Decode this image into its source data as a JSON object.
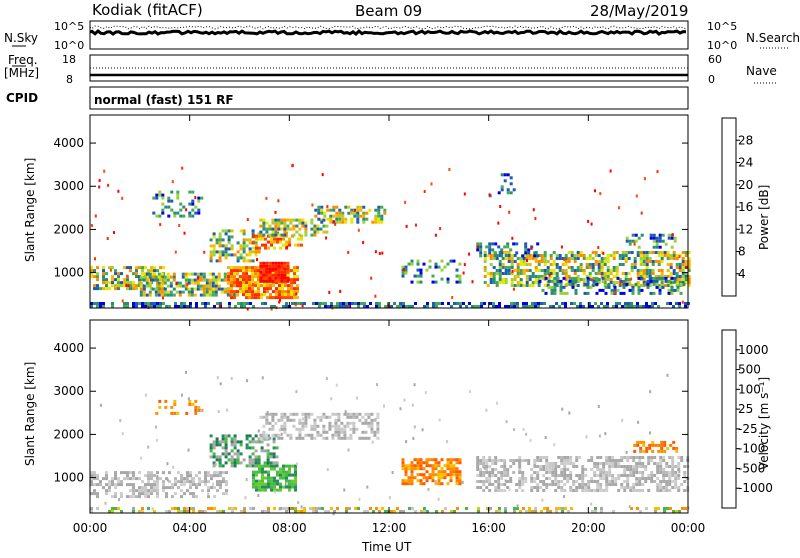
{
  "header": {
    "title": "Kodiak (fitACF)",
    "beam": "Beam 09",
    "date": "28/May/2019"
  },
  "status_panel": {
    "nsky_label": "N.Sky",
    "nsearch_label": "N.Search",
    "freq_label": "Freq.",
    "freq_unit": "[MHz]",
    "nave_label": "Nave",
    "cpid_label": "CPID",
    "cpid_text": "normal (fast) 151 RF",
    "noise_ticks": [
      "10^5",
      "10^0"
    ],
    "freq_ticks": [
      "18",
      "8"
    ],
    "nave_ticks": [
      "60",
      "0"
    ]
  },
  "chart_data": [
    {
      "type": "heatmap",
      "name": "power",
      "ylabel": "Slant Range [km]",
      "ylim": [
        180,
        4650
      ],
      "yticks": [
        "1000",
        "2000",
        "3000",
        "4000"
      ],
      "xticks": [
        "00:00",
        "04:00",
        "08:00",
        "12:00",
        "16:00",
        "20:00",
        "00:00"
      ],
      "xlim_hours": [
        0,
        24
      ],
      "colorbar": {
        "label": "Power [dB]",
        "ticks": [
          "28",
          "24",
          "20",
          "16",
          "12",
          "8",
          "4"
        ],
        "colors": [
          "#ff0000",
          "#ff4a00",
          "#ff8c00",
          "#f5b800",
          "#e6e600",
          "#9ad23c",
          "#44aa55",
          "#2a8c78",
          "#1f5ab4",
          "#0000e6"
        ]
      },
      "regions": [
        {
          "t0": 0.0,
          "t1": 24.0,
          "r0": 220,
          "r1": 320,
          "level": "low",
          "density": 0.55
        },
        {
          "t0": 0.0,
          "t1": 3.0,
          "r0": 650,
          "r1": 1150,
          "level": "mid",
          "density": 0.65
        },
        {
          "t0": 2.0,
          "t1": 6.0,
          "r0": 500,
          "r1": 1000,
          "level": "mid",
          "density": 0.7
        },
        {
          "t0": 5.5,
          "t1": 8.3,
          "r0": 450,
          "r1": 1150,
          "level": "high",
          "density": 0.85
        },
        {
          "t0": 6.8,
          "t1": 8.0,
          "r0": 800,
          "r1": 1250,
          "level": "max",
          "density": 0.95
        },
        {
          "t0": 4.8,
          "t1": 6.8,
          "r0": 1300,
          "r1": 2000,
          "level": "mid",
          "density": 0.5
        },
        {
          "t0": 6.5,
          "t1": 8.5,
          "r0": 1600,
          "r1": 1950,
          "level": "high",
          "density": 0.6
        },
        {
          "t0": 6.8,
          "t1": 9.5,
          "r0": 1900,
          "r1": 2250,
          "level": "mid",
          "density": 0.6
        },
        {
          "t0": 9.0,
          "t1": 11.8,
          "r0": 2200,
          "r1": 2550,
          "level": "mid",
          "density": 0.6
        },
        {
          "t0": 2.5,
          "t1": 4.5,
          "r0": 2300,
          "r1": 2900,
          "level": "lowmid",
          "density": 0.35
        },
        {
          "t0": 12.5,
          "t1": 14.8,
          "r0": 800,
          "r1": 1300,
          "level": "lowmid",
          "density": 0.35
        },
        {
          "t0": 15.8,
          "t1": 24.0,
          "r0": 700,
          "r1": 1500,
          "level": "mid",
          "density": 0.6
        },
        {
          "t0": 18.0,
          "t1": 24.0,
          "r0": 550,
          "r1": 900,
          "level": "lowmid",
          "density": 0.45
        },
        {
          "t0": 15.5,
          "t1": 18.0,
          "r0": 1400,
          "r1": 1700,
          "level": "low",
          "density": 0.4
        },
        {
          "t0": 16.0,
          "t1": 17.0,
          "r0": 2800,
          "r1": 3300,
          "level": "low",
          "density": 0.25
        },
        {
          "t0": 21.5,
          "t1": 23.5,
          "r0": 1600,
          "r1": 1900,
          "level": "lowmid",
          "density": 0.4
        }
      ]
    },
    {
      "type": "heatmap",
      "name": "velocity",
      "ylabel": "Slant Range [km]",
      "ylim": [
        180,
        4650
      ],
      "yticks": [
        "1000",
        "2000",
        "3000",
        "4000"
      ],
      "xticks": [
        "00:00",
        "04:00",
        "08:00",
        "12:00",
        "16:00",
        "20:00",
        "00:00"
      ],
      "xlabel": "Time UT",
      "xlim_hours": [
        0,
        24
      ],
      "colorbar": {
        "label": "Velocity [m s⁻¹]",
        "ticks": [
          "1000",
          "500",
          "100",
          "25",
          "-25",
          "-100",
          "-500",
          "-1000"
        ],
        "colors": [
          "#2233aa",
          "#1f5c8c",
          "#2a8c58",
          "#44bb44",
          "#a8a8a8",
          "#c8c8c8",
          "#f5c000",
          "#ff9000",
          "#ff5a00",
          "#ff0000"
        ]
      },
      "regions": [
        {
          "t0": 0.0,
          "t1": 24.0,
          "r0": 220,
          "r1": 320,
          "level": "mixed",
          "density": 0.45
        },
        {
          "t0": 0.0,
          "t1": 5.5,
          "r0": 550,
          "r1": 1150,
          "level": "gray",
          "density": 0.55
        },
        {
          "t0": 4.8,
          "t1": 7.5,
          "r0": 1300,
          "r1": 2000,
          "level": "green",
          "density": 0.55
        },
        {
          "t0": 6.5,
          "t1": 8.2,
          "r0": 700,
          "r1": 1300,
          "level": "lightgreen",
          "density": 0.8
        },
        {
          "t0": 6.8,
          "t1": 11.5,
          "r0": 1900,
          "r1": 2500,
          "level": "gray",
          "density": 0.55
        },
        {
          "t0": 2.5,
          "t1": 4.5,
          "r0": 2400,
          "r1": 2800,
          "level": "orange",
          "density": 0.3
        },
        {
          "t0": 12.5,
          "t1": 14.8,
          "r0": 850,
          "r1": 1450,
          "level": "orange",
          "density": 0.65
        },
        {
          "t0": 15.5,
          "t1": 24.0,
          "r0": 700,
          "r1": 1500,
          "level": "gray",
          "density": 0.6
        },
        {
          "t0": 21.8,
          "t1": 23.5,
          "r0": 1600,
          "r1": 1850,
          "level": "orange",
          "density": 0.45
        }
      ]
    }
  ]
}
